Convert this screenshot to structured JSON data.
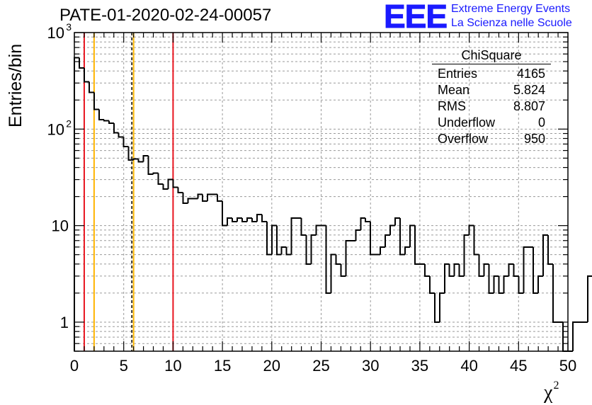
{
  "header": {
    "run_title": "PATE-01-2020-02-24-00057",
    "logo_text": "EEE",
    "logo_line1": "Extreme Energy Events",
    "logo_line2": "La Scienza nelle Scuole"
  },
  "stats_box": {
    "title": "ChiSquare",
    "rows": [
      {
        "label": "Entries",
        "value": "4165"
      },
      {
        "label": "Mean",
        "value": "5.824"
      },
      {
        "label": "RMS",
        "value": "8.807"
      },
      {
        "label": "Underflow",
        "value": "0"
      },
      {
        "label": "Overflow",
        "value": "950"
      }
    ]
  },
  "colors": {
    "histogram": "#000000",
    "red_line": "#e8141e",
    "yellow_line": "#ffb400",
    "dashed_line": "#000000",
    "grid": "#9a9a9a",
    "logo": "#1a1aff"
  },
  "chart_data": {
    "type": "histogram",
    "title": "PATE-01-2020-02-24-00057",
    "xlabel": "χ",
    "xlabel_exponent": "2",
    "ylabel": "Entries/bin",
    "y_scale": "log",
    "xlim": [
      0,
      50
    ],
    "ylim": [
      0.5,
      1000
    ],
    "grid": true,
    "bin_width": 0.5,
    "x_ticks": [
      0,
      5,
      10,
      15,
      20,
      25,
      30,
      35,
      40,
      45,
      50
    ],
    "y_ticks": [
      {
        "value": 1,
        "label": "1"
      },
      {
        "value": 10,
        "label": "10"
      },
      {
        "value": 100,
        "label": "10",
        "exponent": "2"
      },
      {
        "value": 1000,
        "label": "10",
        "exponent": "3"
      }
    ],
    "values": [
      550,
      430,
      310,
      240,
      160,
      125,
      122,
      115,
      92,
      83,
      66,
      48,
      49,
      46,
      53,
      34,
      35,
      27,
      24,
      30,
      25,
      22,
      17,
      19,
      19,
      21,
      18,
      21,
      21,
      18,
      10,
      12,
      11,
      12,
      11,
      12,
      11,
      13,
      11,
      5,
      10,
      5,
      6,
      5,
      12,
      12,
      8,
      4,
      8,
      10,
      10,
      2,
      5,
      4,
      3,
      7,
      7,
      9,
      12,
      11,
      5,
      5,
      6,
      8,
      10,
      12,
      5,
      6,
      10,
      4,
      4,
      3,
      2,
      1,
      2,
      4,
      3,
      4,
      3,
      8,
      10,
      5,
      3,
      4,
      2,
      3,
      2,
      3,
      4,
      3,
      2,
      6,
      6,
      2,
      3,
      8,
      4,
      1,
      1,
      0,
      0,
      1,
      1,
      1,
      3,
      3
    ],
    "vertical_lines": [
      {
        "x": 1,
        "color": "red",
        "style": "solid"
      },
      {
        "x": 2,
        "color": "yellow",
        "style": "solid"
      },
      {
        "x": 5.824,
        "color": "black",
        "style": "dashed"
      },
      {
        "x": 6,
        "color": "yellow",
        "style": "solid"
      },
      {
        "x": 10,
        "color": "red",
        "style": "solid"
      }
    ]
  }
}
